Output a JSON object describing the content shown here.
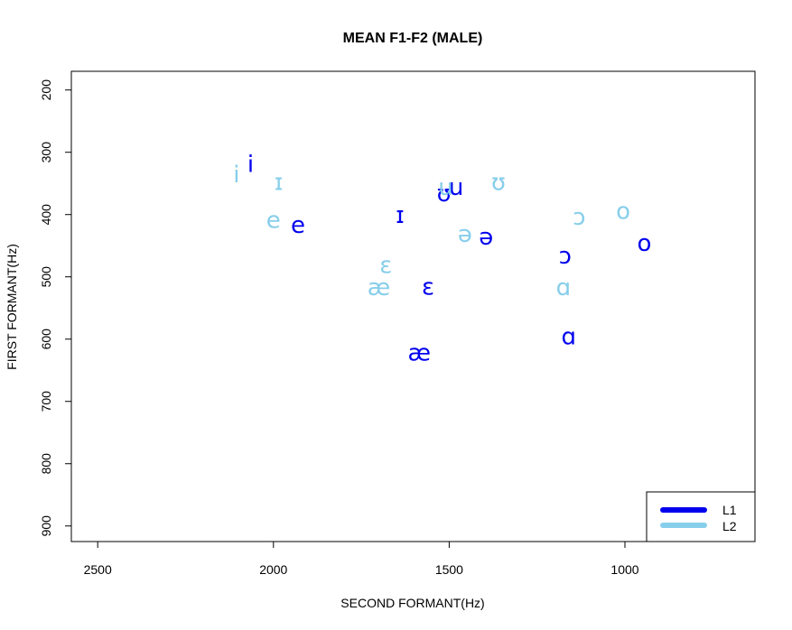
{
  "chart_data": {
    "type": "scatter",
    "title": "MEAN F1-F2 (MALE)",
    "xlabel": "SECOND FORMANT(Hz)",
    "ylabel": "FIRST FORMANT(Hz)",
    "xlim": [
      2575,
      630
    ],
    "ylim": [
      925,
      170
    ],
    "x_reversed": true,
    "y_reversed": true,
    "xticks": [
      2500,
      2000,
      1500,
      1000
    ],
    "yticks": [
      200,
      300,
      400,
      500,
      600,
      700,
      800,
      900
    ],
    "grid": false,
    "legend_position": "bottom-right",
    "series": [
      {
        "name": "L1",
        "color": "#0000EE",
        "points": [
          {
            "label": "i",
            "x": 2065,
            "y": 320
          },
          {
            "label": "ɪ",
            "x": 1640,
            "y": 402
          },
          {
            "label": "e",
            "x": 1930,
            "y": 418
          },
          {
            "label": "ɛ",
            "x": 1560,
            "y": 517
          },
          {
            "label": "æ",
            "x": 1585,
            "y": 623
          },
          {
            "label": "u",
            "x": 1480,
            "y": 357
          },
          {
            "label": "ʊ",
            "x": 1515,
            "y": 367
          },
          {
            "label": "ə",
            "x": 1395,
            "y": 437
          },
          {
            "label": "ɔ",
            "x": 1170,
            "y": 467
          },
          {
            "label": "ɑ",
            "x": 1160,
            "y": 597
          },
          {
            "label": "o",
            "x": 945,
            "y": 447
          }
        ]
      },
      {
        "name": "L2",
        "color": "#87CEEB",
        "points": [
          {
            "label": "i",
            "x": 2105,
            "y": 337
          },
          {
            "label": "ɪ",
            "x": 1985,
            "y": 349
          },
          {
            "label": "e",
            "x": 2000,
            "y": 410
          },
          {
            "label": "ɛ",
            "x": 1680,
            "y": 482
          },
          {
            "label": "æ",
            "x": 1700,
            "y": 518
          },
          {
            "label": "u",
            "x": 1510,
            "y": 357
          },
          {
            "label": "ʊ",
            "x": 1360,
            "y": 349
          },
          {
            "label": "ə",
            "x": 1455,
            "y": 432
          },
          {
            "label": "ɔ",
            "x": 1130,
            "y": 405
          },
          {
            "label": "ɑ",
            "x": 1175,
            "y": 518
          },
          {
            "label": "o",
            "x": 1005,
            "y": 395
          }
        ]
      }
    ]
  }
}
